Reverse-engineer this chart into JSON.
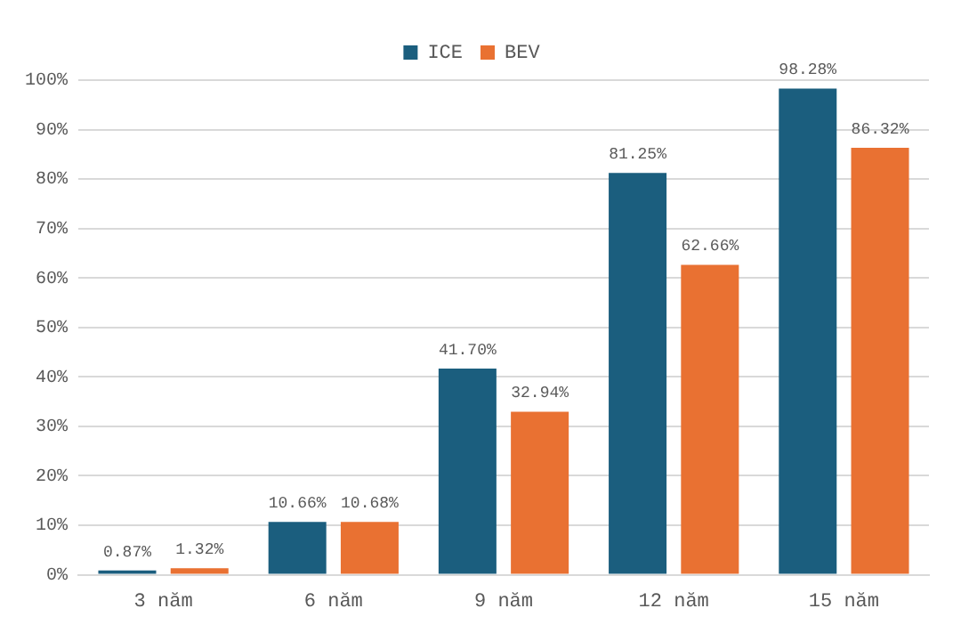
{
  "chart_data": {
    "type": "bar",
    "categories": [
      "3 năm",
      "6 năm",
      "9 năm",
      "12 năm",
      "15 năm"
    ],
    "series": [
      {
        "name": "ICE",
        "color": "#1b5e7e",
        "values": [
          0.87,
          10.66,
          41.7,
          81.25,
          98.28
        ],
        "value_labels": [
          "0.87%",
          "10.66%",
          "41.70%",
          "81.25%",
          "98.28%"
        ]
      },
      {
        "name": "BEV",
        "color": "#e97132",
        "values": [
          1.32,
          10.68,
          32.94,
          62.66,
          86.32
        ],
        "value_labels": [
          "1.32%",
          "10.68%",
          "32.94%",
          "62.66%",
          "86.32%"
        ]
      }
    ],
    "ylim": [
      0,
      100
    ],
    "yticks": [
      {
        "value": 0,
        "label": "0%"
      },
      {
        "value": 10,
        "label": "10%"
      },
      {
        "value": 20,
        "label": "20%"
      },
      {
        "value": 30,
        "label": "30%"
      },
      {
        "value": 40,
        "label": "40%"
      },
      {
        "value": 50,
        "label": "50%"
      },
      {
        "value": 60,
        "label": "60%"
      },
      {
        "value": 70,
        "label": "70%"
      },
      {
        "value": 80,
        "label": "80%"
      },
      {
        "value": 90,
        "label": "90%"
      },
      {
        "value": 100,
        "label": "100%"
      }
    ],
    "grid": "y",
    "legend": "top"
  }
}
